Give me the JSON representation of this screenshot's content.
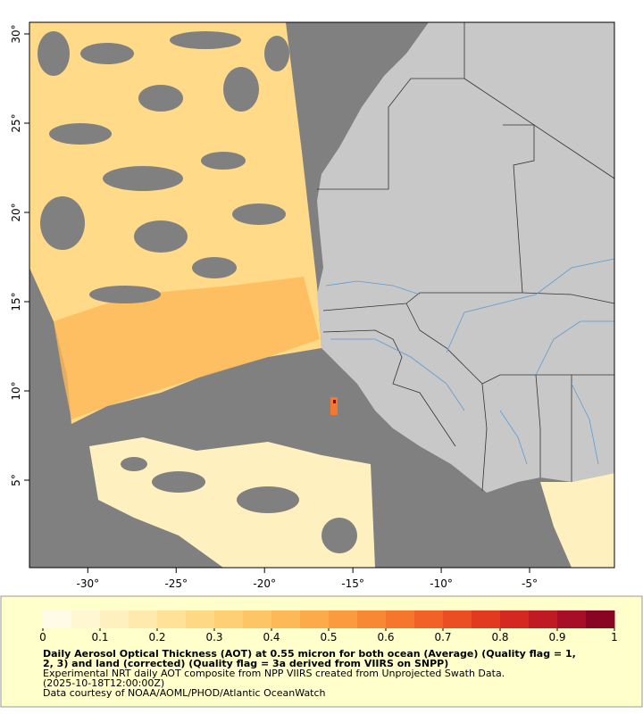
{
  "map": {
    "xlim": [
      -33.3,
      -0.2
    ],
    "ylim": [
      0.1,
      30.65
    ],
    "xticks": [
      {
        "value": -30,
        "label": "-30°"
      },
      {
        "value": -25,
        "label": "-25°"
      },
      {
        "value": -20,
        "label": "-20°"
      },
      {
        "value": -15,
        "label": "-15°"
      },
      {
        "value": -10,
        "label": "-10°"
      },
      {
        "value": -5,
        "label": "-5°"
      }
    ],
    "yticks": [
      {
        "value": 5,
        "label": "5°"
      },
      {
        "value": 10,
        "label": "10°"
      },
      {
        "value": 15,
        "label": "15°"
      },
      {
        "value": 20,
        "label": "20°"
      },
      {
        "value": 25,
        "label": "25°"
      },
      {
        "value": 30,
        "label": "30°"
      }
    ]
  },
  "colorbar": {
    "lim": [
      0,
      1
    ],
    "ticks": [
      0,
      0.1,
      0.2,
      0.3,
      0.4,
      0.5,
      0.6,
      0.7,
      0.8,
      0.9,
      1
    ],
    "colors": [
      "#fffbe6",
      "#fff6d2",
      "#fff0c0",
      "#ffe9ac",
      "#ffe198",
      "#ffd886",
      "#ffcf76",
      "#fec566",
      "#fdb858",
      "#fcaa4a",
      "#fb9a3e",
      "#f98834",
      "#f6762e",
      "#f26228",
      "#ec4e24",
      "#e23a20",
      "#d52820",
      "#c01a24",
      "#a80e28",
      "#8a0424"
    ]
  },
  "caption": {
    "title_lines": [
      "Daily Aerosol Optical Thickness (AOT) at 0.55 micron for both ocean (Average) (Quality flag = 1,",
      "2, 3) and land (corrected) (Quality flag = 3a derived from VIIRS on SNPP)"
    ],
    "lines": [
      "Experimental NRT daily AOT composite from NPP VIIRS created from Unprojected Swath Data.",
      "(2025-10-18T12:00:00Z)",
      "Data courtesy of NOAA/AOML/PHOD/Atlantic OceanWatch"
    ]
  }
}
